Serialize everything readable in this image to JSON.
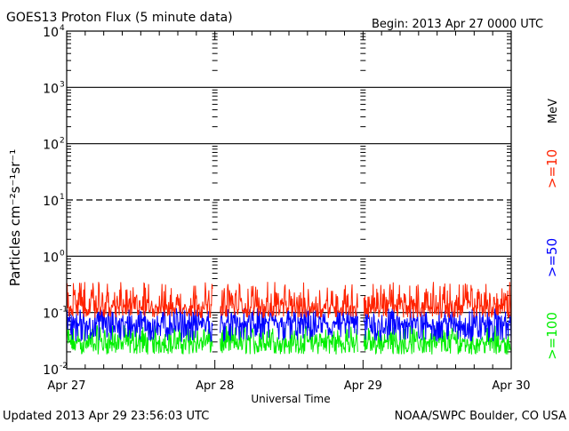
{
  "header": {
    "title": "GOES13 Proton Flux (5 minute data)",
    "begin": "Begin: 2013 Apr 27 0000 UTC"
  },
  "footer": {
    "updated": "Updated 2013 Apr 29 23:56:03 UTC",
    "credit": "NOAA/SWPC Boulder, CO USA"
  },
  "chart_data": {
    "type": "line",
    "title": "GOES13 Proton Flux (5 minute data)",
    "xlabel": "Universal Time",
    "ylabel": "Particles cm⁻²s⁻¹sr⁻¹",
    "yscale": "log",
    "ylim": [
      0.01,
      10000
    ],
    "y_tick_labels": [
      {
        "base": "10",
        "exp": "-2",
        "value": 0.01
      },
      {
        "base": "10",
        "exp": "-1",
        "value": 0.1
      },
      {
        "base": "10",
        "exp": "0",
        "value": 1
      },
      {
        "base": "10",
        "exp": "1",
        "value": 10
      },
      {
        "base": "10",
        "exp": "2",
        "value": 100
      },
      {
        "base": "10",
        "exp": "3",
        "value": 1000
      },
      {
        "base": "10",
        "exp": "4",
        "value": 10000
      }
    ],
    "x_ticks": [
      "Apr 27",
      "Apr 28",
      "Apr 29",
      "Apr 30"
    ],
    "xlim": [
      "2013-04-27T00:00",
      "2013-04-30T00:00"
    ],
    "threshold_lines": [
      {
        "value": 10,
        "style": "dashed"
      },
      {
        "value": 1,
        "style": "solid"
      },
      {
        "value": 100,
        "style": "solid"
      },
      {
        "value": 1000,
        "style": "solid"
      },
      {
        "value": 0.1,
        "style": "solid"
      }
    ],
    "unit_label": "MeV",
    "series": [
      {
        "name": ">=10",
        "color": "#ff2200",
        "values_range": [
          0.08,
          0.35
        ],
        "typical": 0.13
      },
      {
        "name": ">=50",
        "color": "#0000ff",
        "values_range": [
          0.03,
          0.12
        ],
        "typical": 0.065
      },
      {
        "name": ">=100",
        "color": "#00ee00",
        "values_range": [
          0.018,
          0.06
        ],
        "typical": 0.03
      }
    ],
    "grid": false
  }
}
